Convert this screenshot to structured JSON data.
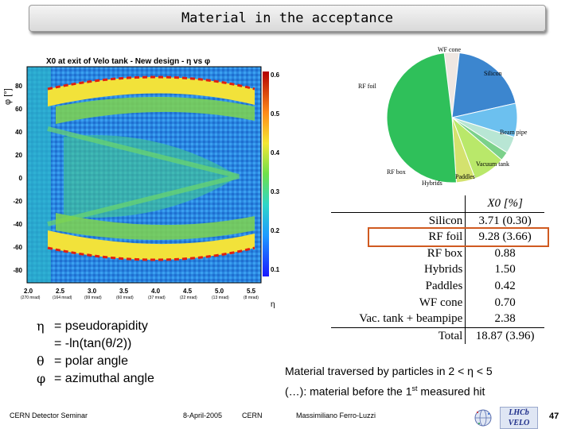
{
  "slide": {
    "title": "Material in the acceptance",
    "page_number": "47"
  },
  "plot": {
    "title": "X0 at exit of Velo tank - New design - η vs φ",
    "ylabel": "φ [°]",
    "xlabel": "η",
    "y_ticks": [
      "80",
      "60",
      "40",
      "20",
      "0",
      "-20",
      "-40",
      "-60",
      "-80"
    ],
    "z_ticks": [
      "0.6",
      "0.5",
      "0.4",
      "0.3",
      "0.2",
      "0.1"
    ],
    "x_ticks": [
      "2.0",
      "2.5",
      "3.0",
      "3.5",
      "4.0",
      "4.5",
      "5.0",
      "5.5"
    ],
    "x_sub": [
      "(270 mrad)",
      "(164 mrad)",
      "(99 mrad)",
      "(60 mrad)",
      "(37 mrad)",
      "(22 mrad)",
      "(13 mrad)",
      "(8 mrad)"
    ]
  },
  "chart_data": {
    "type": "pie",
    "title": "",
    "categories": [
      "WF cone",
      "Silicon",
      "Beam pipe",
      "Vacuum tank",
      "Paddles",
      "Hybrids",
      "RF box",
      "RF foil"
    ],
    "values": [
      3.7,
      19.7,
      8.4,
      4.2,
      2.2,
      8.0,
      4.7,
      49.2
    ],
    "colors": [
      "#efe7e2",
      "#3c86cf",
      "#6cc0ef",
      "#b8e6d4",
      "#7bd18a",
      "#b9e86a",
      "#d4e26e",
      "#2fc05a"
    ]
  },
  "table": {
    "header": [
      "",
      "X0 [%]"
    ],
    "rows": [
      [
        "Silicon",
        "3.71 (0.30)"
      ],
      [
        "RF foil",
        "9.28 (3.66)"
      ],
      [
        "RF box",
        "0.88"
      ],
      [
        "Hybrids",
        "1.50"
      ],
      [
        "Paddles",
        "0.42"
      ],
      [
        "WF cone",
        "0.70"
      ],
      [
        "Vac. tank + beampipe",
        "2.38"
      ],
      [
        "Total",
        "18.87 (3.96)"
      ]
    ]
  },
  "definitions": [
    {
      "symbol": "η",
      "text": "= pseudorapidity"
    },
    {
      "symbol": "",
      "text": "= -ln(tan(θ/2))"
    },
    {
      "symbol": "θ",
      "text": "= polar angle"
    },
    {
      "symbol": "φ",
      "text": "= azimuthal angle"
    }
  ],
  "caption": {
    "line1": "Material traversed by particles in 2 < η < 5",
    "line2_pre": "(…): material before the 1",
    "line2_sup": "st",
    "line2_post": " measured hit"
  },
  "footer": {
    "event": "CERN Detector Seminar",
    "date": "8-April-2005",
    "place": "CERN",
    "author": "Massimiliano Ferro-Luzzi",
    "logo": "LHCb VELO"
  }
}
